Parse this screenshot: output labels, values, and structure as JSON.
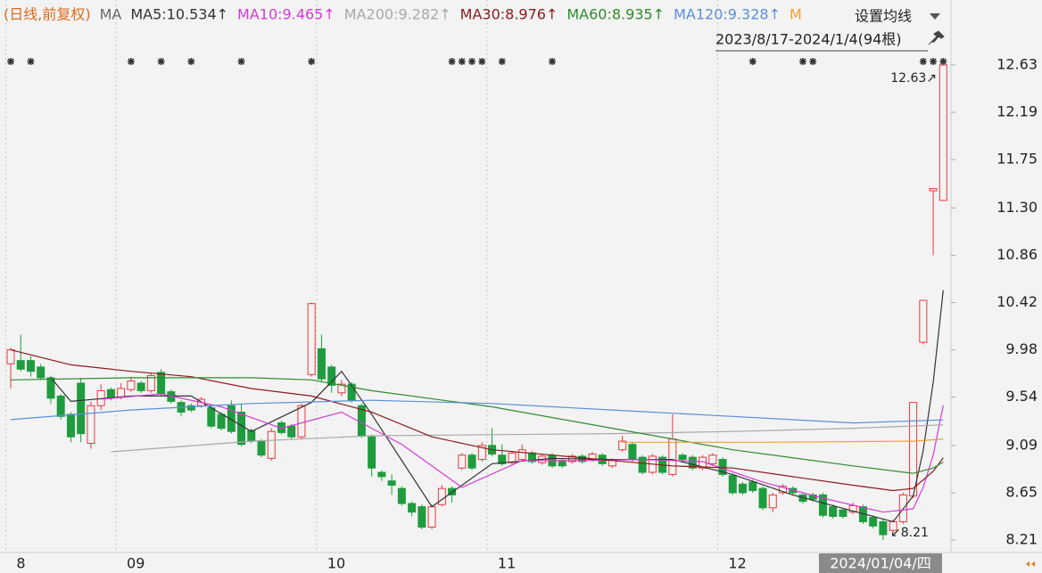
{
  "chart_data": {
    "type": "candlestick",
    "title": "(日线,前复权)",
    "ma_label": "MA",
    "settings_button": "设置均线",
    "range_label": "2023/8/17-2024/1/4(94根)",
    "cursor_label": "2024/01/04/四",
    "high_label": "12.63↗",
    "low_label": "↙8.21",
    "up_color": "#e8383d",
    "down_color": "#1e9c3e",
    "grid": false,
    "categories": [
      "8",
      null,
      null,
      null,
      null,
      null,
      null,
      null,
      null,
      null,
      null,
      "09",
      null,
      null,
      null,
      null,
      null,
      null,
      null,
      null,
      null,
      null,
      null,
      null,
      null,
      null,
      null,
      null,
      null,
      null,
      null,
      "10",
      null,
      null,
      null,
      null,
      null,
      null,
      null,
      null,
      null,
      null,
      null,
      null,
      null,
      null,
      null,
      null,
      "11",
      null,
      null,
      null,
      null,
      null,
      null,
      null,
      null,
      null,
      null,
      null,
      null,
      null,
      null,
      null,
      null,
      null,
      null,
      null,
      null,
      null,
      null,
      "12",
      null,
      null,
      null,
      null,
      null,
      null,
      null,
      null,
      null,
      null,
      null,
      null,
      null,
      null,
      null,
      null,
      null,
      null,
      null,
      null,
      null,
      null
    ],
    "open": [
      9.85,
      9.88,
      9.88,
      9.82,
      9.72,
      9.55,
      9.38,
      9.67,
      9.11,
      9.46,
      9.61,
      9.54,
      9.61,
      9.67,
      9.6,
      9.77,
      9.59,
      9.49,
      9.46,
      9.46,
      9.44,
      9.38,
      9.46,
      9.4,
      9.23,
      9.13,
      8.97,
      9.3,
      9.27,
      9.17,
      9.75,
      9.99,
      9.82,
      9.58,
      9.66,
      9.46,
      9.17,
      8.84,
      8.76,
      8.69,
      8.55,
      8.52,
      8.33,
      8.54,
      8.69,
      8.88,
      9.0,
      8.96,
      9.09,
      9.0,
      8.93,
      8.96,
      9.02,
      8.93,
      9.0,
      8.95,
      8.94,
      8.99,
      8.96,
      9.0,
      8.9,
      9.05,
      9.1,
      8.98,
      8.84,
      8.98,
      8.82,
      9.0,
      8.98,
      8.88,
      8.92,
      8.96,
      8.81,
      8.73,
      8.75,
      8.69,
      8.51,
      8.65,
      8.69,
      8.63,
      8.63,
      8.63,
      8.52,
      8.49,
      8.47,
      8.52,
      8.42,
      8.38,
      8.3,
      8.38,
      8.62,
      10.05,
      11.46,
      11.37
    ],
    "high": [
      10.0,
      10.12,
      9.92,
      9.85,
      9.74,
      9.57,
      9.4,
      9.72,
      9.5,
      9.66,
      9.63,
      9.67,
      9.73,
      9.69,
      9.76,
      9.8,
      9.61,
      9.51,
      9.48,
      9.54,
      9.46,
      9.4,
      9.51,
      9.48,
      9.25,
      9.15,
      9.25,
      9.32,
      9.29,
      9.48,
      10.42,
      10.12,
      9.84,
      9.7,
      9.68,
      9.48,
      9.19,
      8.86,
      8.82,
      8.71,
      8.57,
      8.54,
      8.54,
      8.72,
      8.71,
      9.02,
      9.02,
      9.12,
      9.25,
      9.1,
      9.04,
      9.1,
      9.04,
      9.01,
      9.02,
      8.97,
      9.01,
      9.01,
      9.03,
      9.02,
      8.97,
      9.18,
      9.12,
      9.0,
      9.01,
      9.0,
      9.38,
      9.02,
      9.0,
      9.0,
      9.02,
      8.98,
      8.83,
      8.75,
      8.77,
      8.71,
      8.65,
      8.73,
      8.71,
      8.65,
      8.65,
      8.65,
      8.54,
      8.51,
      8.56,
      8.54,
      8.44,
      8.4,
      8.4,
      8.65,
      9.49,
      10.44,
      11.48,
      12.63
    ],
    "low": [
      9.62,
      9.78,
      9.73,
      9.7,
      9.48,
      9.33,
      9.12,
      9.12,
      9.06,
      9.42,
      9.51,
      9.52,
      9.59,
      9.58,
      9.58,
      9.55,
      9.48,
      9.36,
      9.4,
      9.44,
      9.25,
      9.23,
      9.2,
      9.08,
      9.11,
      8.98,
      8.95,
      9.19,
      9.15,
      9.15,
      9.73,
      9.68,
      9.58,
      9.55,
      9.49,
      9.16,
      8.8,
      8.76,
      8.63,
      8.53,
      8.43,
      8.31,
      8.31,
      8.52,
      8.56,
      8.86,
      8.86,
      8.94,
      8.99,
      8.9,
      8.91,
      8.94,
      8.92,
      8.91,
      8.88,
      8.88,
      8.92,
      8.92,
      8.94,
      8.9,
      8.88,
      9.03,
      8.94,
      8.82,
      8.82,
      8.82,
      8.8,
      8.94,
      8.86,
      8.86,
      8.9,
      8.8,
      8.63,
      8.63,
      8.65,
      8.49,
      8.47,
      8.63,
      8.63,
      8.55,
      8.57,
      8.42,
      8.41,
      8.41,
      8.45,
      8.36,
      8.32,
      8.21,
      8.28,
      8.36,
      8.6,
      10.03,
      10.86,
      11.37
    ],
    "close": [
      9.98,
      9.8,
      9.78,
      9.72,
      9.53,
      9.36,
      9.17,
      9.2,
      9.46,
      9.6,
      9.53,
      9.62,
      9.69,
      9.6,
      9.74,
      9.57,
      9.5,
      9.4,
      9.42,
      9.52,
      9.27,
      9.25,
      9.22,
      9.1,
      9.13,
      9.0,
      9.22,
      9.21,
      9.17,
      9.46,
      10.41,
      9.71,
      9.65,
      9.66,
      9.51,
      9.18,
      8.88,
      8.8,
      8.72,
      8.55,
      8.47,
      8.33,
      8.52,
      8.69,
      8.63,
      9.0,
      8.88,
      9.09,
      9.01,
      8.92,
      9.02,
      9.05,
      8.94,
      8.99,
      8.9,
      8.9,
      8.99,
      8.94,
      9.01,
      8.92,
      8.95,
      9.13,
      8.96,
      8.84,
      8.99,
      8.84,
      9.15,
      8.96,
      8.88,
      8.98,
      9.0,
      8.82,
      8.65,
      8.65,
      8.67,
      8.51,
      8.63,
      8.71,
      8.65,
      8.57,
      8.59,
      8.44,
      8.43,
      8.43,
      8.53,
      8.38,
      8.34,
      8.26,
      8.38,
      8.63,
      9.49,
      10.44,
      11.48,
      12.63
    ],
    "series": [
      {
        "name": "MA5:10.534↑",
        "color": "#333333",
        "x": [
          4,
          6,
          12,
          18,
          24,
          30,
          33,
          36,
          42,
          48,
          54,
          60,
          66,
          72,
          78,
          84,
          88,
          90,
          91,
          92,
          93
        ],
        "values": [
          9.72,
          9.5,
          9.55,
          9.55,
          9.22,
          9.49,
          9.78,
          9.38,
          8.52,
          8.92,
          8.97,
          8.96,
          8.96,
          8.82,
          8.63,
          8.48,
          8.38,
          8.62,
          9.04,
          9.68,
          10.534
        ]
      },
      {
        "name": "MA10:9.465↑",
        "color": "#d63ad6",
        "x": [
          9,
          15,
          21,
          27,
          33,
          39,
          45,
          51,
          57,
          63,
          69,
          75,
          81,
          87,
          90,
          91,
          92,
          93
        ],
        "values": [
          9.52,
          9.57,
          9.45,
          9.25,
          9.4,
          9.1,
          8.7,
          8.95,
          8.95,
          8.96,
          8.94,
          8.75,
          8.6,
          8.47,
          8.5,
          8.7,
          9.0,
          9.465
        ]
      },
      {
        "name": "MA200:9.282↑",
        "color": "#a8a8a8",
        "x": [
          10,
          24,
          36,
          48,
          60,
          72,
          84,
          93
        ],
        "values": [
          9.03,
          9.13,
          9.18,
          9.19,
          9.2,
          9.22,
          9.25,
          9.282
        ]
      },
      {
        "name": "MA30:8.976↑",
        "color": "#8b1a1a",
        "x": [
          0,
          6,
          12,
          18,
          24,
          30,
          36,
          42,
          48,
          54,
          60,
          66,
          72,
          78,
          84,
          88,
          90,
          92,
          93
        ],
        "values": [
          9.98,
          9.84,
          9.78,
          9.73,
          9.62,
          9.55,
          9.4,
          9.17,
          9.05,
          9.0,
          8.95,
          8.9,
          8.88,
          8.8,
          8.72,
          8.67,
          8.69,
          8.85,
          8.976
        ]
      },
      {
        "name": "MA60:8.935↑",
        "color": "#2e8b2e",
        "x": [
          0,
          12,
          24,
          30,
          36,
          48,
          60,
          72,
          84,
          90,
          92,
          93
        ],
        "values": [
          9.7,
          9.72,
          9.72,
          9.7,
          9.6,
          9.45,
          9.25,
          9.05,
          8.9,
          8.83,
          8.88,
          8.935
        ]
      },
      {
        "name": "MA120:9.328↑",
        "color": "#5a8fd6",
        "x": [
          0,
          12,
          24,
          36,
          48,
          60,
          72,
          84,
          93
        ],
        "values": [
          9.33,
          9.42,
          9.48,
          9.51,
          9.48,
          9.42,
          9.36,
          9.3,
          9.328
        ]
      },
      {
        "name": "M",
        "color": "#f0a030",
        "x": [
          61,
          75,
          90,
          93
        ],
        "values": [
          9.12,
          9.12,
          9.13,
          9.15
        ]
      }
    ],
    "event_days": [
      0,
      2,
      12,
      15,
      18,
      23,
      30,
      44,
      45,
      46,
      47,
      49,
      54,
      74,
      79,
      80,
      91,
      92,
      93
    ],
    "ylim": [
      8.094,
      13.235
    ],
    "yticks": [
      12.63,
      12.19,
      11.75,
      {
        "value": 11.3,
        "label": "11.30"
      },
      10.86,
      10.42,
      9.98,
      9.54,
      9.09,
      8.65,
      8.21
    ]
  }
}
